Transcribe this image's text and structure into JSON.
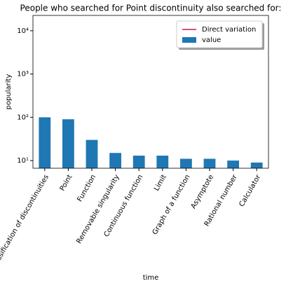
{
  "chart_data": {
    "type": "bar",
    "title": "People who searched for Point discontinuity also searched for:",
    "xlabel": "time",
    "ylabel": "popularity",
    "categories": [
      "Classification of discontinuities",
      "Point",
      "Function",
      "Removable singularity",
      "Continuous function",
      "Limit",
      "Graph of a function",
      "Asymptote",
      "Rational number",
      "Calculator"
    ],
    "series": [
      {
        "name": "Direct variation",
        "type": "line",
        "color": "#c2185b",
        "values": [
          null,
          null,
          null,
          null,
          null,
          null,
          null,
          null,
          null,
          null
        ]
      },
      {
        "name": "value",
        "type": "bar",
        "color": "#1f77b4",
        "values": [
          100,
          90,
          30,
          15,
          13,
          13,
          11,
          11,
          10,
          9
        ]
      }
    ],
    "log_y": true,
    "ylim": [
      6.65,
      22600
    ],
    "yticks": [
      {
        "value": 10,
        "label": "10¹"
      },
      {
        "value": 100,
        "label": "10²"
      },
      {
        "value": 1000,
        "label": "10³"
      },
      {
        "value": 10000,
        "label": "10⁴"
      }
    ],
    "grid": false,
    "legend": "upper right"
  }
}
